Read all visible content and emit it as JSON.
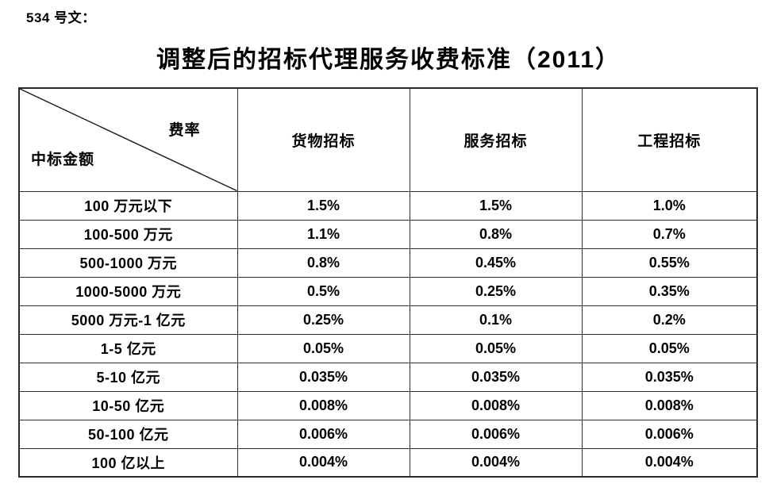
{
  "page": {
    "doc_label": "534 号文：",
    "title": "调整后的招标代理服务收费标准（2011）"
  },
  "table": {
    "corner": {
      "top_right": "费率",
      "bottom_left": "中标金额"
    },
    "columns": [
      "货物招标",
      "服务招标",
      "工程招标"
    ],
    "rows": [
      {
        "amount": "100 万元以下",
        "values": [
          "1.5%",
          "1.5%",
          "1.0%"
        ]
      },
      {
        "amount": "100-500 万元",
        "values": [
          "1.1%",
          "0.8%",
          "0.7%"
        ]
      },
      {
        "amount": "500-1000 万元",
        "values": [
          "0.8%",
          "0.45%",
          "0.55%"
        ]
      },
      {
        "amount": "1000-5000 万元",
        "values": [
          "0.5%",
          "0.25%",
          "0.35%"
        ]
      },
      {
        "amount": "5000 万元-1 亿元",
        "values": [
          "0.25%",
          "0.1%",
          "0.2%"
        ]
      },
      {
        "amount": "1-5 亿元",
        "values": [
          "0.05%",
          "0.05%",
          "0.05%"
        ]
      },
      {
        "amount": "5-10 亿元",
        "values": [
          "0.035%",
          "0.035%",
          "0.035%"
        ]
      },
      {
        "amount": "10-50 亿元",
        "values": [
          "0.008%",
          "0.008%",
          "0.008%"
        ]
      },
      {
        "amount": "50-100 亿元",
        "values": [
          "0.006%",
          "0.006%",
          "0.006%"
        ]
      },
      {
        "amount": "100 亿以上",
        "values": [
          "0.004%",
          "0.004%",
          "0.004%"
        ]
      }
    ],
    "colors": {
      "border": "#2e2e2e",
      "text": "#000000",
      "background": "#ffffff"
    }
  }
}
